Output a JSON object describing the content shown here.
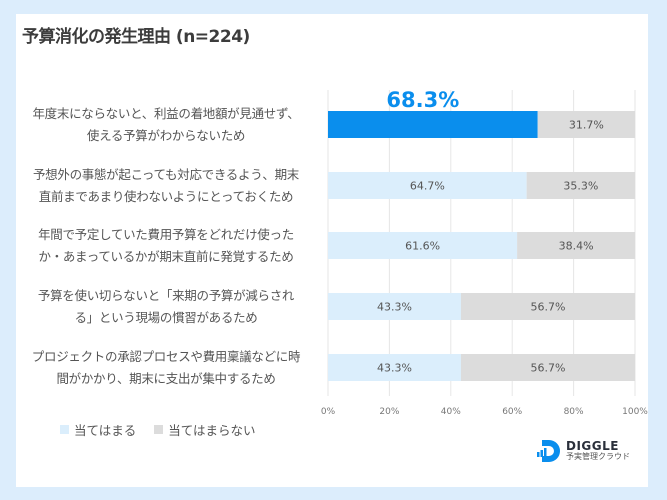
{
  "chart_data": {
    "type": "bar",
    "orientation": "horizontal",
    "stacked": true,
    "title": "予算消化の発生理由 (n=224)",
    "categories": [
      [
        "年度末にならないと、利益の着地額が見通せず、",
        "使える予算がわからないため"
      ],
      [
        "予想外の事態が起こっても対応できるよう、期末",
        "直前まであまり使わないようにとっておくため"
      ],
      [
        "年間で予定していた費用予算をどれだけ使った",
        "か・あまっているかが期末直前に発覚するため"
      ],
      [
        "予算を使い切らないと「来期の予算が減らされ",
        "る」という現場の慣習があるため"
      ],
      [
        "プロジェクトの承認プロセスや費用稟議などに時",
        "間がかかり、期末に支出が集中するため"
      ]
    ],
    "series": [
      {
        "name": "当てはまる",
        "color": "#dbeefc",
        "values": [
          68.3,
          64.7,
          61.6,
          43.3,
          43.3
        ],
        "labels": [
          "68.3%",
          "64.7%",
          "61.6%",
          "43.3%",
          "43.3%"
        ]
      },
      {
        "name": "当てはまらない",
        "color": "#dcdcdc",
        "values": [
          31.7,
          35.3,
          38.4,
          56.7,
          56.7
        ],
        "labels": [
          "31.7%",
          "35.3%",
          "38.4%",
          "56.7%",
          "56.7%"
        ]
      }
    ],
    "highlight": {
      "row": 0,
      "series": 0,
      "color": "#0a8eed",
      "label": "68.3%"
    },
    "xlim": [
      0,
      100
    ],
    "xticks": [
      "0%",
      "20%",
      "40%",
      "60%",
      "80%",
      "100%"
    ],
    "grid": true,
    "legend_position": "bottom-left"
  },
  "brand": {
    "name": "DIGGLE",
    "tagline": "予実管理クラウド",
    "color": "#0a8eed"
  }
}
